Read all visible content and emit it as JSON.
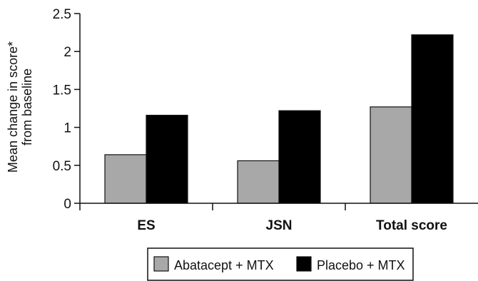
{
  "chart_data": {
    "type": "bar",
    "categories": [
      "ES",
      "JSN",
      "Total score"
    ],
    "series": [
      {
        "name": "Abatacept + MTX",
        "values": [
          0.64,
          0.56,
          1.27
        ],
        "color": "#a8a8a8"
      },
      {
        "name": "Placebo + MTX",
        "values": [
          1.16,
          1.22,
          2.22
        ],
        "color": "#000000"
      }
    ],
    "ylabel_line1": "Mean change in score*",
    "ylabel_line2": "from baseline",
    "ylim": [
      0,
      2.5
    ],
    "yticks": [
      "0",
      "0.5",
      "1",
      "1.5",
      "2",
      "2.5"
    ],
    "ytick_values": [
      0,
      0.5,
      1,
      1.5,
      2,
      2.5
    ],
    "legend_position": "bottom"
  }
}
